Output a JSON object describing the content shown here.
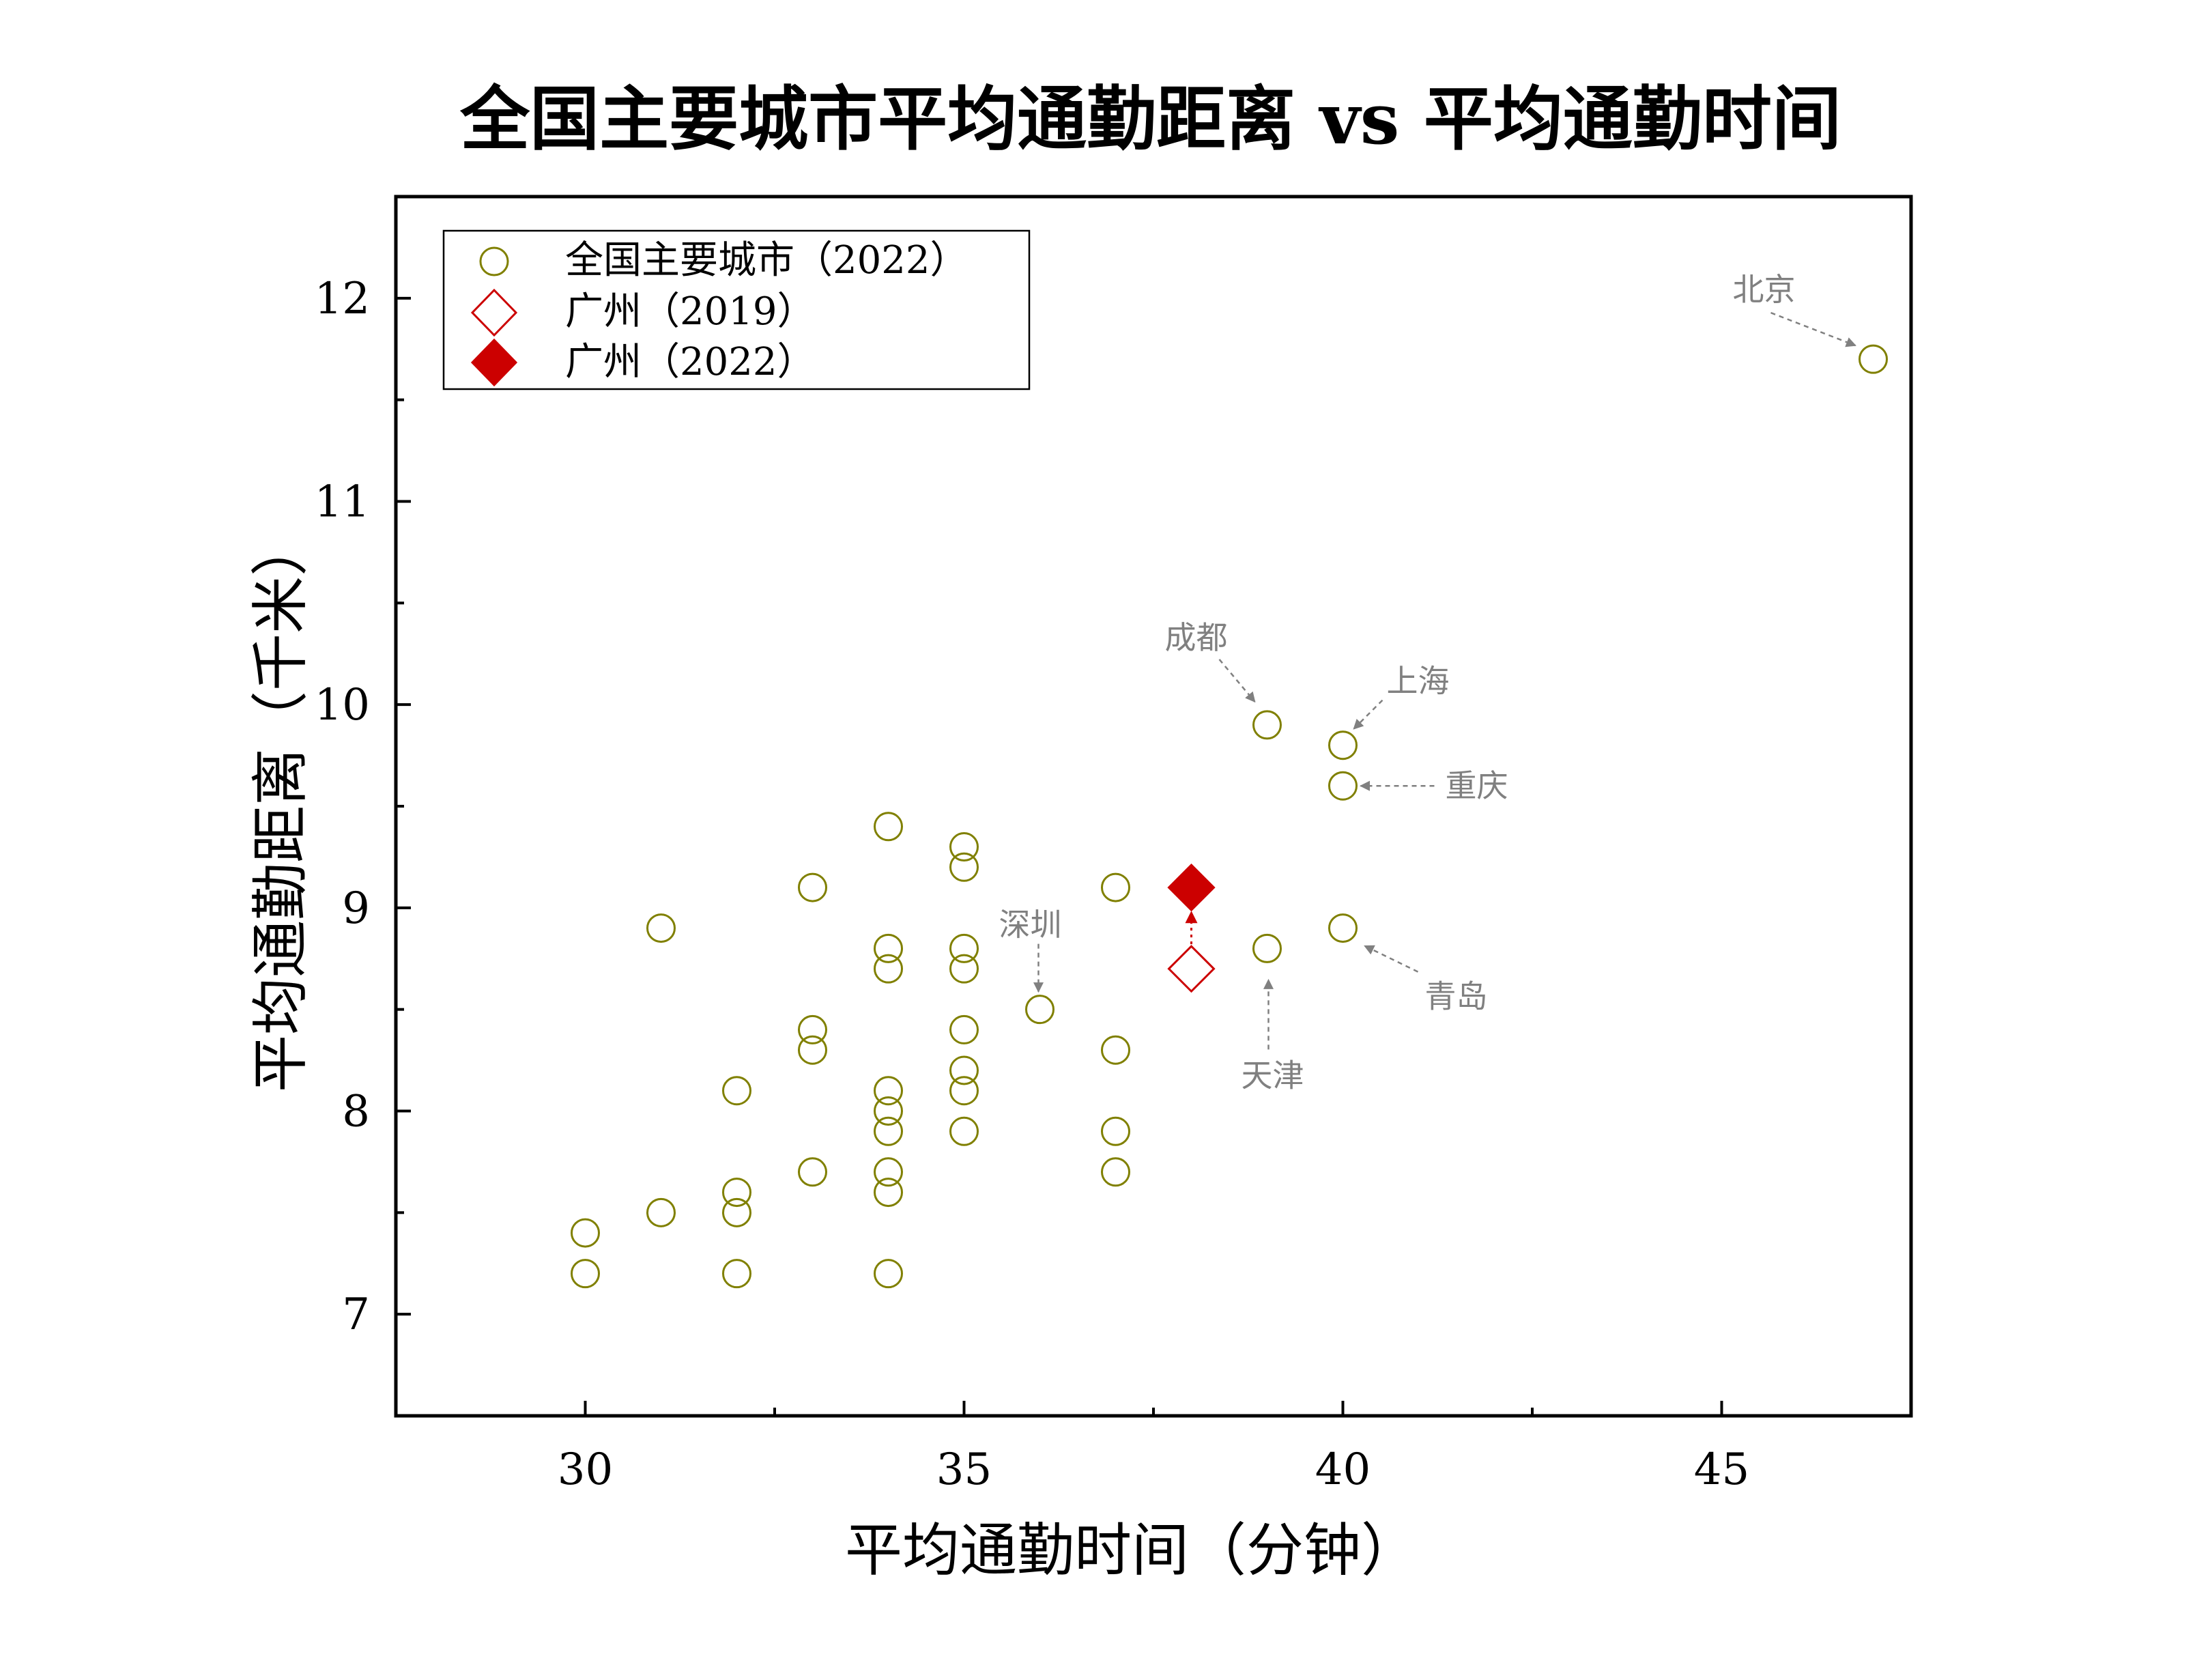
{
  "chart_data": {
    "type": "scatter",
    "title": "全国主要城市平均通勤距离 vs 平均通勤时间",
    "xlabel": "平均通勤时间（分钟）",
    "ylabel": "平均通勤距离（千米）",
    "xlim": [
      27.5,
      47.5
    ],
    "ylim": [
      6.5,
      12.5
    ],
    "xticks": [
      30,
      35,
      40,
      45
    ],
    "yticks": [
      7,
      8,
      9,
      10,
      11,
      12
    ],
    "grid": false,
    "legend": "top-left",
    "colors": {
      "cities": "#808000",
      "guangzhou": "#cc0000",
      "annotation": "#808080"
    },
    "series": [
      {
        "name": "全国主要城市（2022）",
        "marker": "circle-open",
        "points": [
          [
            30,
            7.4
          ],
          [
            30,
            7.2
          ],
          [
            31,
            8.9
          ],
          [
            31,
            7.5
          ],
          [
            32,
            8.1
          ],
          [
            32,
            7.6
          ],
          [
            32,
            7.5
          ],
          [
            32,
            7.2
          ],
          [
            33,
            9.1
          ],
          [
            33,
            8.4
          ],
          [
            33,
            8.3
          ],
          [
            33,
            7.7
          ],
          [
            34,
            9.4
          ],
          [
            34,
            8.8
          ],
          [
            34,
            8.7
          ],
          [
            34,
            8.1
          ],
          [
            34,
            8.0
          ],
          [
            34,
            7.9
          ],
          [
            34,
            7.7
          ],
          [
            34,
            7.6
          ],
          [
            34,
            7.2
          ],
          [
            35,
            9.3
          ],
          [
            35,
            9.2
          ],
          [
            35,
            8.8
          ],
          [
            35,
            8.7
          ],
          [
            35,
            8.4
          ],
          [
            35,
            8.2
          ],
          [
            35,
            8.1
          ],
          [
            35,
            7.9
          ],
          [
            36,
            8.5
          ],
          [
            37,
            9.1
          ],
          [
            37,
            8.3
          ],
          [
            37,
            7.9
          ],
          [
            37,
            7.7
          ],
          [
            39,
            9.9
          ],
          [
            39,
            8.8
          ],
          [
            40,
            9.8
          ],
          [
            40,
            9.6
          ],
          [
            40,
            8.9
          ],
          [
            47,
            11.7
          ]
        ]
      },
      {
        "name": "广州（2019）",
        "marker": "diamond-open",
        "points": [
          [
            38,
            8.7
          ]
        ]
      },
      {
        "name": "广州（2022）",
        "marker": "diamond-filled",
        "points": [
          [
            38,
            9.1
          ]
        ]
      }
    ],
    "annotations": [
      {
        "text": "北京",
        "point": [
          47,
          11.7
        ]
      },
      {
        "text": "成都",
        "point": [
          39,
          9.9
        ]
      },
      {
        "text": "上海",
        "point": [
          40,
          9.8
        ]
      },
      {
        "text": "重庆",
        "point": [
          40,
          9.6
        ]
      },
      {
        "text": "深圳",
        "point": [
          36,
          8.5
        ]
      },
      {
        "text": "天津",
        "point": [
          39,
          8.8
        ]
      },
      {
        "text": "青岛",
        "point": [
          40,
          8.9
        ]
      }
    ]
  }
}
